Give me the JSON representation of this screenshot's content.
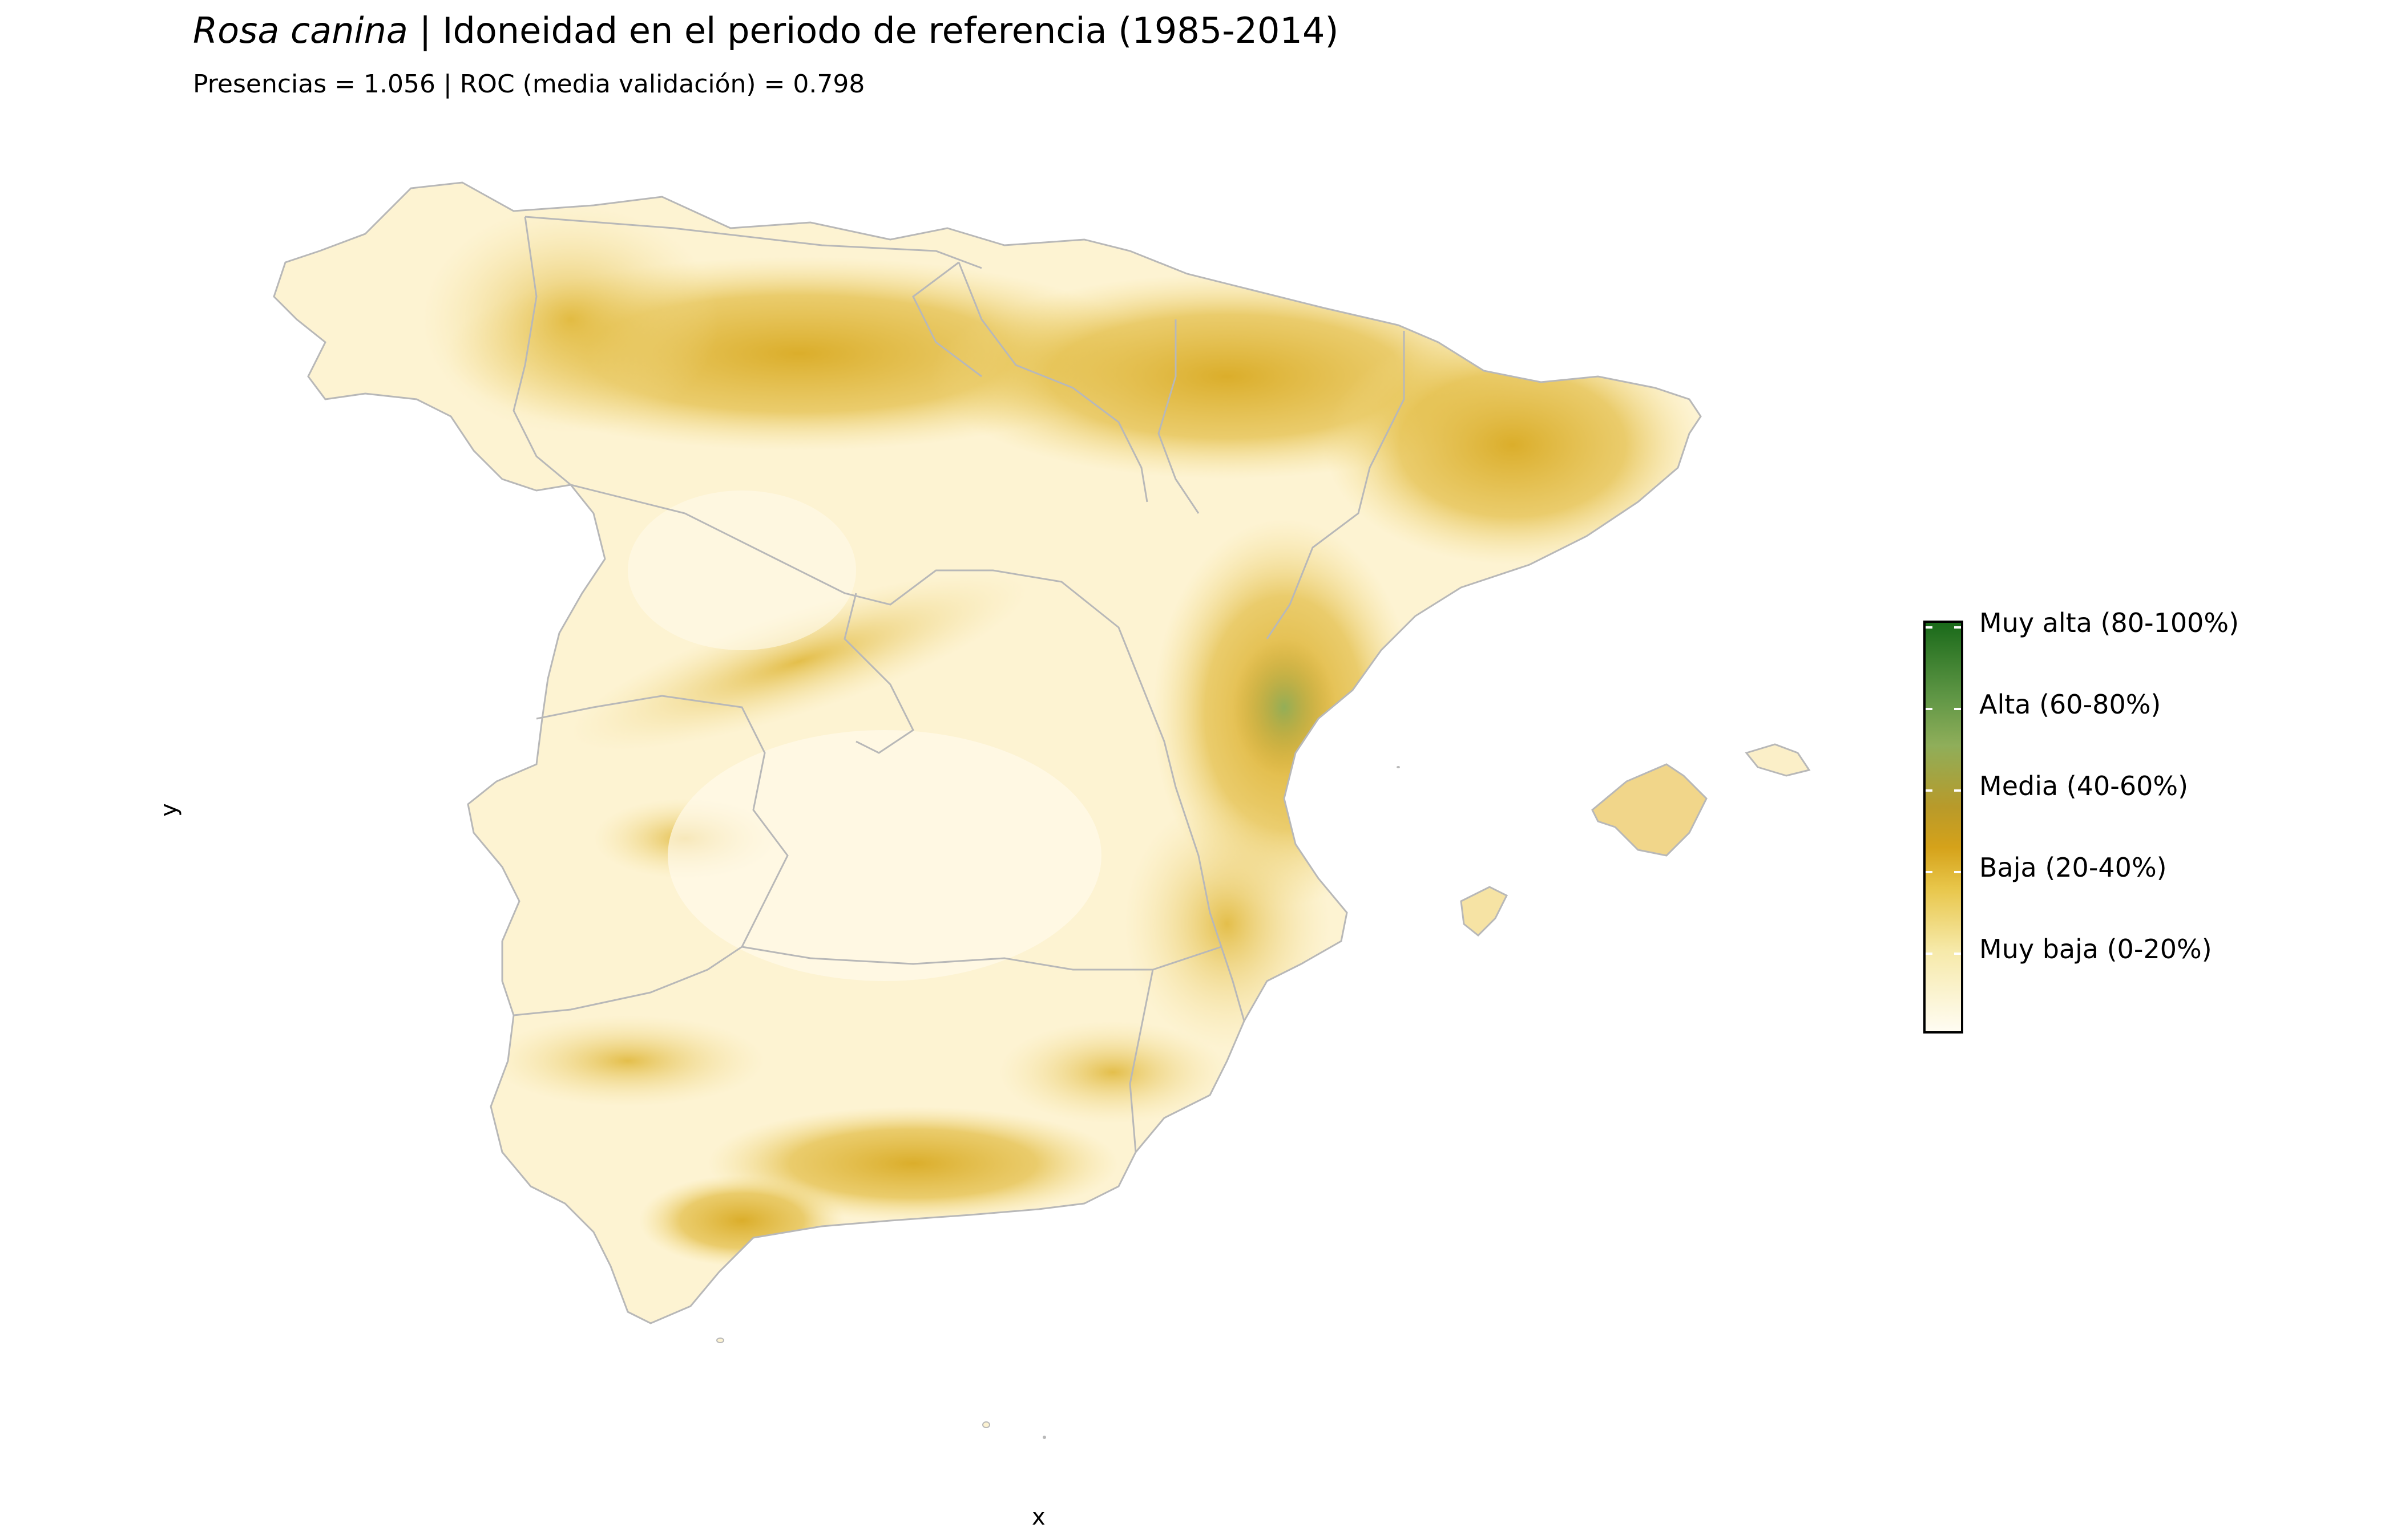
{
  "title": {
    "species": "Rosa canina",
    "rest": " | Idoneidad en el periodo de referencia (1985-2014)"
  },
  "subtitle": "Presencias = 1.056  |  ROC (media validación) = 0.798",
  "axes": {
    "x_label": "x",
    "y_label": "y"
  },
  "legend": {
    "items": [
      {
        "label": "Muy alta (80-100%)",
        "color": "#1a6a1a"
      },
      {
        "label": "Alta (60-80%)",
        "color": "#8fae5a"
      },
      {
        "label": "Media (40-60%)",
        "color": "#b89a2a"
      },
      {
        "label": "Baja (20-40%)",
        "color": "#d5a21a"
      },
      {
        "label": "Muy baja (0-20%)",
        "color": "#f6e9a8"
      }
    ]
  },
  "colors": {
    "border": "#b8b8b8",
    "low": "#fffcf2",
    "high": "#1a6a1a"
  }
}
